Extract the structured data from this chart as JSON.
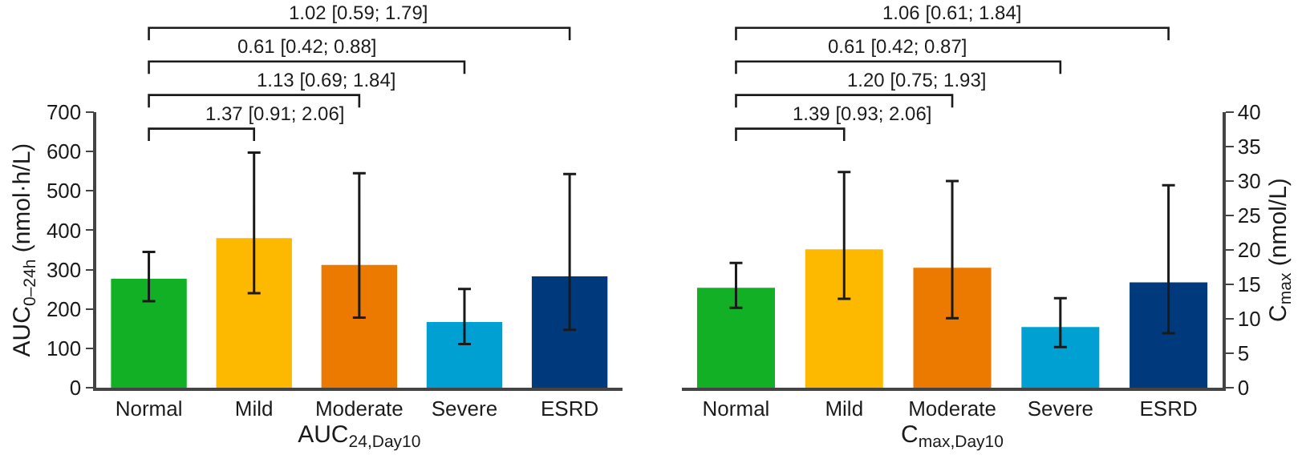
{
  "chart_data": [
    {
      "type": "bar",
      "categories": [
        "Normal",
        "Mild",
        "Moderate",
        "Severe",
        "ESRD"
      ],
      "values": [
        277,
        380,
        312,
        167,
        283
      ],
      "colors": [
        "#12b024",
        "#fdb900",
        "#ec7a00",
        "#00a0d2",
        "#003a7d"
      ],
      "errors": [
        [
          220,
          345
        ],
        [
          240,
          597
        ],
        [
          178,
          545
        ],
        [
          111,
          251
        ],
        [
          147,
          543
        ]
      ],
      "xlabel": "AUC$_{24,Day10}$",
      "ylabel": "AUC$_{0–24h}$ (nmol·h/L)",
      "ylim": [
        0,
        700
      ],
      "yticks": [
        0,
        100,
        200,
        300,
        400,
        500,
        600,
        700
      ],
      "annotations": [
        "1.37 [0.91; 2.06]",
        "1.13 [0.69; 1.84]",
        "0.61 [0.42; 0.88]",
        "1.02 [0.59; 1.79]"
      ]
    },
    {
      "type": "bar",
      "categories": [
        "Normal",
        "Mild",
        "Moderate",
        "Severe",
        "ESRD"
      ],
      "values": [
        14.5,
        20.1,
        17.4,
        8.8,
        15.3
      ],
      "colors": [
        "#12b024",
        "#fdb900",
        "#ec7a00",
        "#00a0d2",
        "#003a7d"
      ],
      "errors": [
        [
          11.6,
          18.1
        ],
        [
          12.9,
          31.3
        ],
        [
          10.1,
          30.0
        ],
        [
          5.9,
          13.0
        ],
        [
          7.9,
          29.4
        ]
      ],
      "xlabel": "C$_{max,Day10}$",
      "ylabel": "C$_{max}$ (nmol/L)",
      "ylim": [
        0,
        40
      ],
      "yticks": [
        0,
        5,
        10,
        15,
        20,
        25,
        30,
        35,
        40
      ],
      "annotations": [
        "1.39 [0.93; 2.06]",
        "1.20 [0.75; 1.93]",
        "0.61 [0.42; 0.87]",
        "1.06 [0.61; 1.84]"
      ]
    }
  ]
}
